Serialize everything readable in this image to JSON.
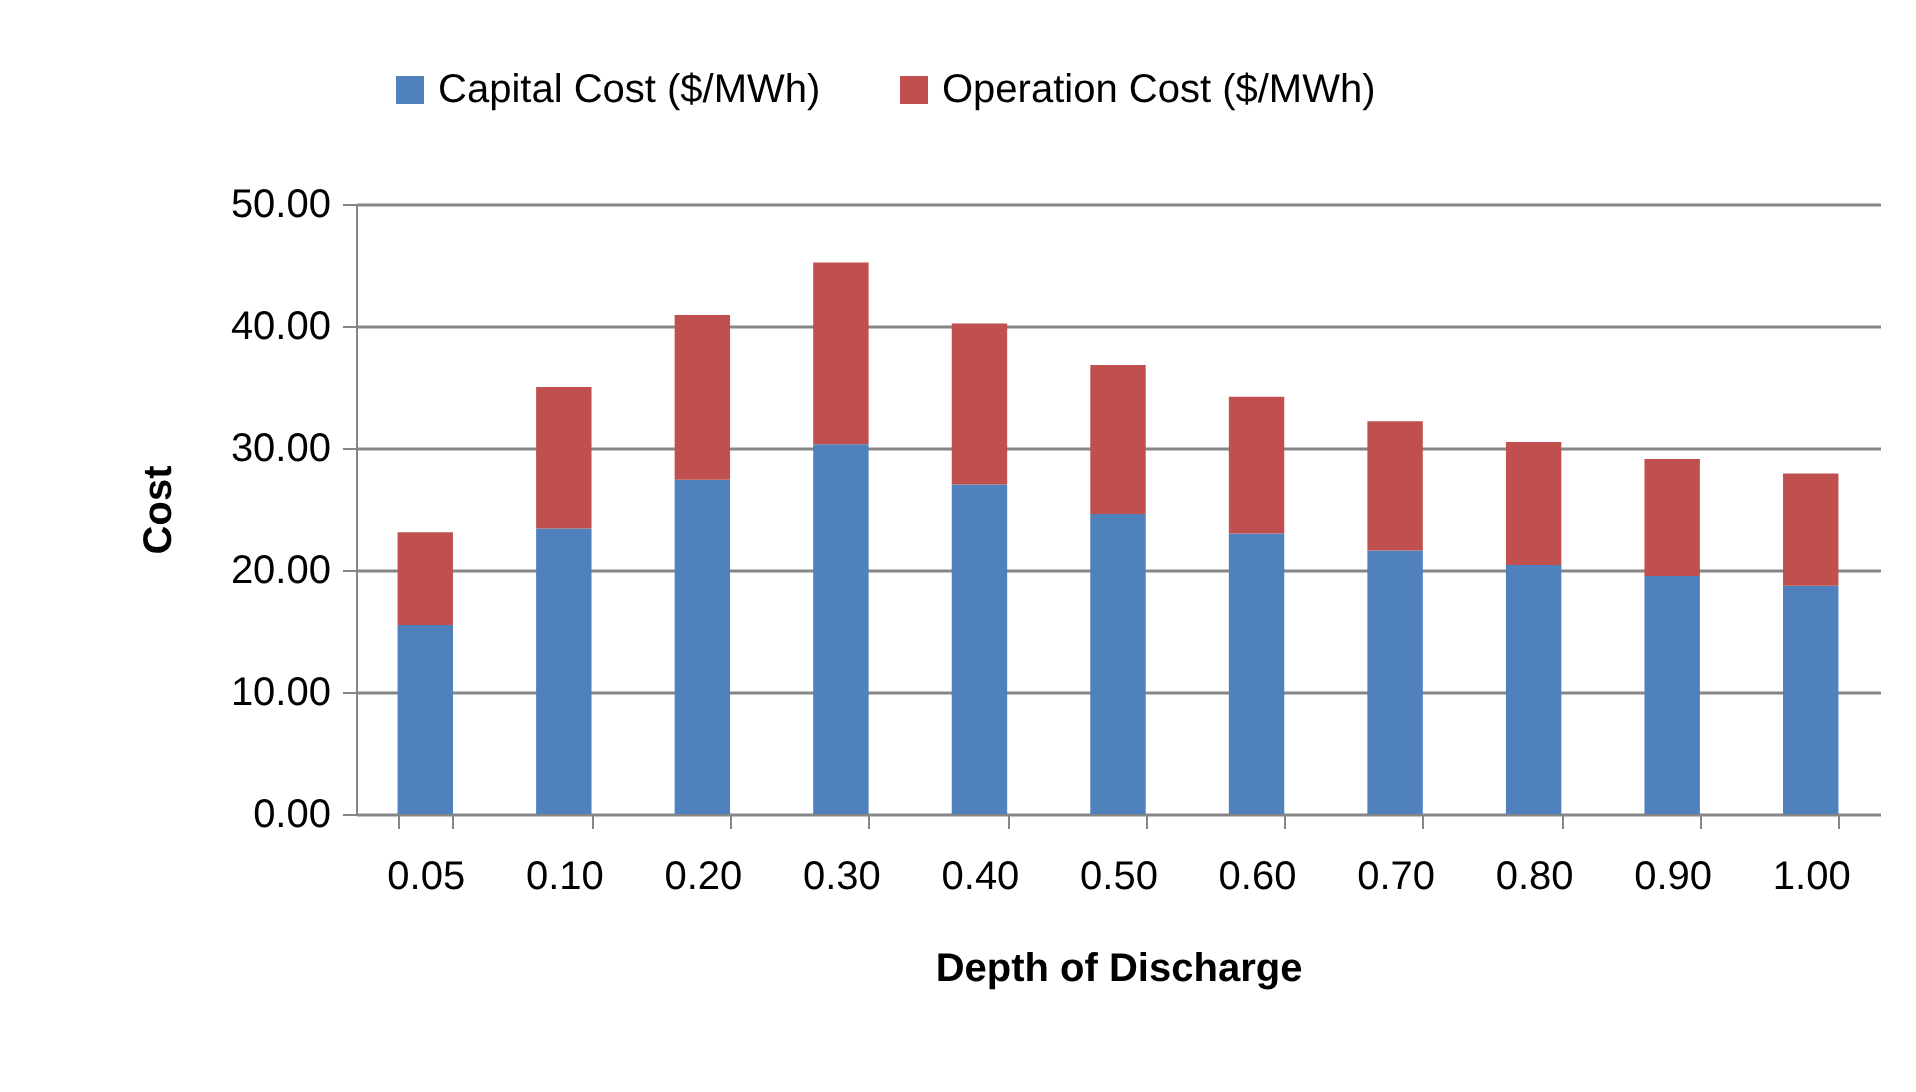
{
  "chart_data": {
    "type": "bar",
    "stacked": true,
    "xlabel": "Depth of Discharge",
    "ylabel": "Cost",
    "categories": [
      "0.05",
      "0.10",
      "0.20",
      "0.30",
      "0.40",
      "0.50",
      "0.60",
      "0.70",
      "0.80",
      "0.90",
      "1.00"
    ],
    "series": [
      {
        "name": "Capital Cost ($/MWh)",
        "color": "#4f81bd",
        "values": [
          15.5,
          23.4,
          27.4,
          30.3,
          27.0,
          24.6,
          23.0,
          21.6,
          20.4,
          19.5,
          18.7
        ]
      },
      {
        "name": "Operation Cost ($/MWh)",
        "color": "#c0504d",
        "values": [
          7.6,
          11.6,
          13.5,
          14.9,
          13.2,
          12.2,
          11.2,
          10.6,
          10.1,
          9.6,
          9.2
        ]
      }
    ],
    "ylim": [
      0,
      50
    ],
    "yticks": [
      {
        "value": 0,
        "label": "0.00"
      },
      {
        "value": 10,
        "label": "10.00"
      },
      {
        "value": 20,
        "label": "20.00"
      },
      {
        "value": 30,
        "label": "30.00"
      },
      {
        "value": 40,
        "label": "40.00"
      },
      {
        "value": 50,
        "label": "50.00"
      }
    ],
    "grid": "y",
    "legend": "top"
  }
}
